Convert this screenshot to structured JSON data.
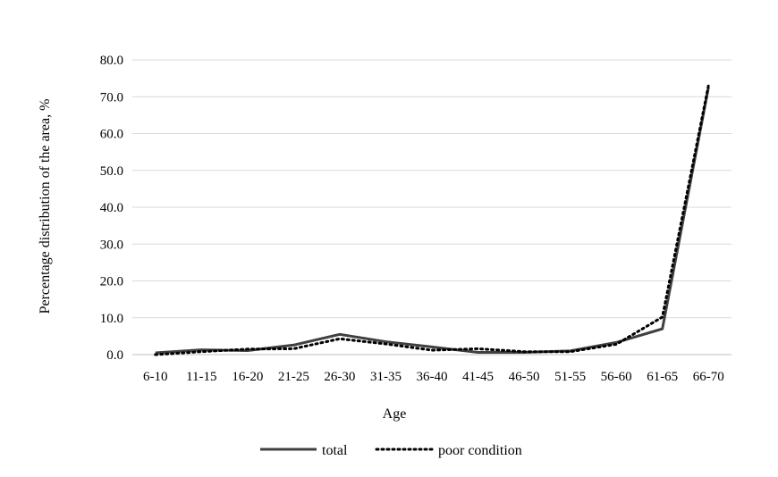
{
  "chart_data": {
    "type": "line",
    "title": "",
    "xlabel": "Age",
    "ylabel": "Percentage distribution of the area, %",
    "ylim": [
      0,
      80
    ],
    "yticks": [
      "0.0",
      "10.0",
      "20.0",
      "30.0",
      "40.0",
      "50.0",
      "60.0",
      "70.0",
      "80.0"
    ],
    "categories": [
      "6-10",
      "11-15",
      "16-20",
      "21-25",
      "26-30",
      "31-35",
      "36-40",
      "41-45",
      "46-50",
      "51-55",
      "56-60",
      "61-65",
      "66-70"
    ],
    "grid": "horizontal",
    "legend_position": "bottom",
    "series": [
      {
        "name": "total",
        "style": "solid",
        "color": "#404040",
        "values": [
          0.5,
          1.3,
          1.1,
          2.6,
          5.5,
          3.5,
          2.1,
          0.6,
          0.6,
          1.0,
          3.3,
          7.0,
          72.5
        ]
      },
      {
        "name": "poor condition",
        "style": "dotted",
        "color": "#000000",
        "values": [
          0.0,
          0.8,
          1.5,
          1.6,
          4.3,
          2.9,
          1.2,
          1.6,
          0.8,
          0.8,
          2.8,
          10.2,
          73.0
        ]
      }
    ]
  }
}
